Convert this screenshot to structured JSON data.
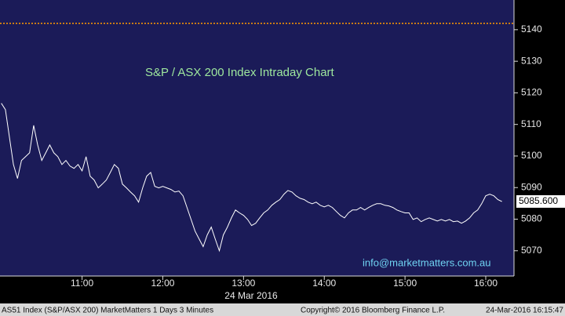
{
  "chart_data": {
    "type": "line",
    "title": "S&P / ASX 200 Index Intraday Chart",
    "annotation": "info@marketmatters.com.au",
    "date_label": "24 Mar 2016",
    "footer": {
      "left": "AS51 Index (S&P/ASX 200) MarketMatters 1 Days 3 Minutes",
      "center": "Copyright© 2016 Bloomberg Finance L.P.",
      "right": "24-Mar-2016 16:15:47"
    },
    "x": [
      "10:00",
      "10:03",
      "10:06",
      "10:09",
      "10:12",
      "10:15",
      "10:18",
      "10:21",
      "10:24",
      "10:27",
      "10:30",
      "10:33",
      "10:36",
      "10:39",
      "10:42",
      "10:45",
      "10:48",
      "10:51",
      "10:54",
      "10:57",
      "11:00",
      "11:03",
      "11:06",
      "11:09",
      "11:12",
      "11:15",
      "11:18",
      "11:21",
      "11:24",
      "11:27",
      "11:30",
      "11:33",
      "11:36",
      "11:39",
      "11:42",
      "11:45",
      "11:48",
      "11:51",
      "11:54",
      "11:57",
      "12:00",
      "12:03",
      "12:06",
      "12:09",
      "12:12",
      "12:15",
      "12:18",
      "12:21",
      "12:24",
      "12:27",
      "12:30",
      "12:33",
      "12:36",
      "12:39",
      "12:42",
      "12:45",
      "12:48",
      "12:51",
      "12:54",
      "12:57",
      "13:00",
      "13:03",
      "13:06",
      "13:09",
      "13:12",
      "13:15",
      "13:18",
      "13:21",
      "13:24",
      "13:27",
      "13:30",
      "13:33",
      "13:36",
      "13:39",
      "13:42",
      "13:45",
      "13:48",
      "13:51",
      "13:54",
      "13:57",
      "14:00",
      "14:03",
      "14:06",
      "14:09",
      "14:12",
      "14:15",
      "14:18",
      "14:21",
      "14:24",
      "14:27",
      "14:30",
      "14:33",
      "14:36",
      "14:39",
      "14:42",
      "14:45",
      "14:48",
      "14:51",
      "14:54",
      "14:57",
      "15:00",
      "15:03",
      "15:06",
      "15:09",
      "15:12",
      "15:15",
      "15:18",
      "15:21",
      "15:24",
      "15:27",
      "15:30",
      "15:33",
      "15:36",
      "15:39",
      "15:42",
      "15:45",
      "15:48",
      "15:51",
      "15:54",
      "15:57",
      "16:00",
      "16:03",
      "16:06",
      "16:09",
      "16:12"
    ],
    "series": [
      {
        "name": "AS51 Index",
        "color": "#ffffff",
        "values": [
          5116.7,
          5114.7,
          5106,
          5097.3,
          5092.9,
          5098.6,
          5099.8,
          5101,
          5109.7,
          5103.5,
          5098.6,
          5101,
          5103.5,
          5101,
          5099.8,
          5097.3,
          5098.6,
          5096.8,
          5096.1,
          5097.3,
          5095.3,
          5099.8,
          5093.6,
          5092.4,
          5089.9,
          5091.1,
          5092.4,
          5094.8,
          5097.3,
          5096.1,
          5091.1,
          5089.9,
          5088.6,
          5087.4,
          5085.4,
          5089.9,
          5093.6,
          5094.8,
          5090.4,
          5089.9,
          5090.4,
          5089.9,
          5089.4,
          5088.6,
          5088.9,
          5087.4,
          5083.7,
          5079.9,
          5076.2,
          5073.7,
          5071.3,
          5075,
          5077.5,
          5073.7,
          5070,
          5075,
          5077.5,
          5080.4,
          5082.9,
          5082,
          5081.2,
          5079.9,
          5078,
          5078.7,
          5080.4,
          5082,
          5082.9,
          5084.4,
          5085.4,
          5086.2,
          5087.9,
          5089.1,
          5088.6,
          5087.4,
          5086.6,
          5086.2,
          5085.4,
          5084.9,
          5085.4,
          5084.4,
          5083.9,
          5084.4,
          5083.7,
          5082.4,
          5081.2,
          5080.4,
          5082,
          5082.9,
          5082.9,
          5083.7,
          5082.9,
          5083.7,
          5084.4,
          5084.9,
          5084.9,
          5084.4,
          5084.2,
          5083.7,
          5082.9,
          5082.4,
          5082,
          5082,
          5079.9,
          5080.4,
          5079.2,
          5079.9,
          5080.4,
          5079.9,
          5079.4,
          5079.9,
          5079.4,
          5079.9,
          5079.2,
          5079.4,
          5078.7,
          5079.4,
          5080.4,
          5082,
          5082.9,
          5084.9,
          5087.4,
          5087.9,
          5087.4,
          5086.2,
          5085.6
        ]
      }
    ],
    "last_price": {
      "value": 5085.6,
      "label": "5085.600"
    },
    "reference_line": {
      "value": 5142,
      "color": "#ff9900"
    },
    "xlim": [
      "09:59",
      "16:21"
    ],
    "xticks": [
      "11:00",
      "12:00",
      "13:00",
      "14:00",
      "15:00",
      "16:00"
    ],
    "ylim": [
      5062,
      5149.4
    ],
    "yticks": [
      5070,
      5080,
      5090,
      5100,
      5110,
      5120,
      5130,
      5140
    ],
    "background": "#1b1b58"
  }
}
